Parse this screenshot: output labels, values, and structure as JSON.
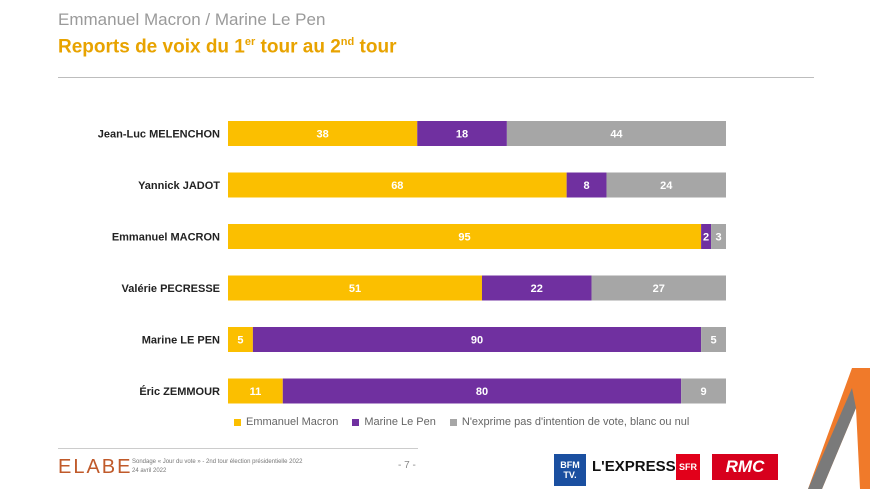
{
  "header": {
    "subtitle": "Emmanuel Macron / Marine Le Pen",
    "title_main": "Reports de voix du 1",
    "title_sup1": "er",
    "title_mid": " tour au 2",
    "title_sup2": "nd",
    "title_end": " tour"
  },
  "colors": {
    "macron": "#fbbf00",
    "lepen": "#7030a0",
    "other": "#a6a6a6"
  },
  "chart_data": {
    "type": "bar",
    "orientation": "horizontal",
    "stacked": true,
    "title": "Reports de voix du 1er tour au 2nd tour",
    "categories": [
      "Jean-Luc MELENCHON",
      "Yannick JADOT",
      "Emmanuel MACRON",
      "Valérie PECRESSE",
      "Marine LE PEN",
      "Éric ZEMMOUR"
    ],
    "series": [
      {
        "name": "Emmanuel Macron",
        "values": [
          38,
          68,
          95,
          51,
          5,
          11
        ]
      },
      {
        "name": "Marine Le Pen",
        "values": [
          18,
          8,
          2,
          22,
          90,
          80
        ]
      },
      {
        "name": "N'exprime pas d'intention de vote, blanc ou nul",
        "values": [
          44,
          24,
          3,
          27,
          5,
          9
        ]
      }
    ],
    "xlim": [
      0,
      100
    ],
    "legend": "bottom"
  },
  "footer": {
    "brand": "ELABE",
    "source_line1": "Sondage « Jour du vote » - 2nd tour élection présidentielle 2022",
    "source_line2": "24 avril 2022",
    "page": "- 7 -",
    "logo_bfm": "BFM TV.",
    "logo_express": "L'EXPRESS",
    "logo_sfr": "SFR",
    "logo_rmc": "RMC"
  }
}
